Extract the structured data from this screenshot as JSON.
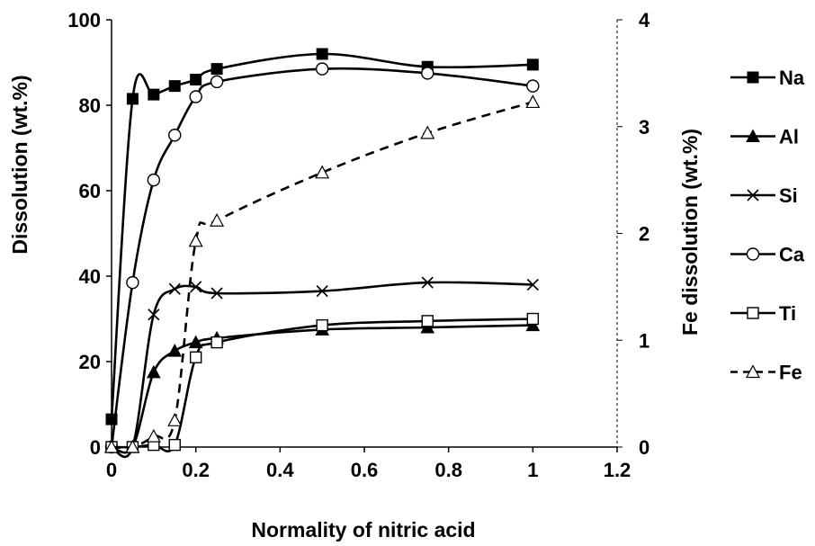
{
  "chart_data": {
    "type": "line",
    "xlabel": "Normality of nitric acid",
    "ylabel": "Dissolution (wt.%)",
    "y2label": "Fe dissolution (wt.%)",
    "xlim": [
      0,
      1.2
    ],
    "ylim": [
      0,
      100
    ],
    "y2lim": [
      0,
      4
    ],
    "x_ticks": [
      "0",
      "0.2",
      "0.4",
      "0.6",
      "0.8",
      "1",
      "1.2"
    ],
    "y_ticks": [
      "0",
      "20",
      "40",
      "60",
      "80",
      "100"
    ],
    "y2_ticks": [
      "0",
      "1",
      "2",
      "3",
      "4"
    ],
    "grid": false,
    "legend_position": "right",
    "series": [
      {
        "name": "Na",
        "axis": "left",
        "marker": "square-filled",
        "line": "solid",
        "x": [
          0,
          0.05,
          0.1,
          0.15,
          0.2,
          0.25,
          0.5,
          0.75,
          1
        ],
        "y": [
          6.5,
          81.5,
          82.5,
          84.5,
          86,
          88.5,
          92,
          89,
          89.5
        ]
      },
      {
        "name": "Al",
        "axis": "left",
        "marker": "triangle-filled",
        "line": "solid",
        "x": [
          0,
          0.05,
          0.1,
          0.15,
          0.2,
          0.25,
          0.5,
          0.75,
          1
        ],
        "y": [
          0,
          0,
          17.5,
          22.5,
          24.5,
          25.5,
          27.5,
          28,
          28.5
        ]
      },
      {
        "name": "Si",
        "axis": "left",
        "marker": "x",
        "line": "solid",
        "x": [
          0,
          0.05,
          0.1,
          0.15,
          0.2,
          0.25,
          0.5,
          0.75,
          1
        ],
        "y": [
          0,
          0,
          31,
          37,
          37.5,
          36,
          36.5,
          38.5,
          38
        ]
      },
      {
        "name": "Ca",
        "axis": "left",
        "marker": "circle-open",
        "line": "solid",
        "x": [
          0,
          0.05,
          0.1,
          0.15,
          0.2,
          0.25,
          0.5,
          0.75,
          1
        ],
        "y": [
          0,
          38.5,
          62.5,
          73,
          82,
          85.5,
          88.5,
          87.5,
          84.5
        ]
      },
      {
        "name": "Ti",
        "axis": "left",
        "marker": "square-open",
        "line": "solid",
        "x": [
          0,
          0.05,
          0.1,
          0.15,
          0.2,
          0.25,
          0.5,
          0.75,
          1
        ],
        "y": [
          0,
          0,
          0.5,
          0.5,
          21,
          24.5,
          28.5,
          29.5,
          30
        ]
      },
      {
        "name": "Fe",
        "axis": "right",
        "marker": "triangle-open",
        "line": "dashed",
        "x": [
          0,
          0.05,
          0.1,
          0.15,
          0.2,
          0.25,
          0.5,
          0.75,
          1
        ],
        "y": [
          0,
          0,
          0.1,
          0.25,
          1.93,
          2.12,
          2.57,
          2.94,
          3.23
        ]
      }
    ]
  }
}
